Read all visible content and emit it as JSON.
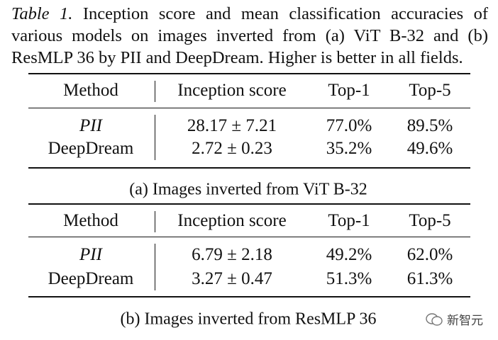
{
  "caption": {
    "label": "Table 1.",
    "text": "Inception score and mean classification accuracies of various models on images inverted from (a) ViT B-32 and (b) ResMLP 36 by PII and DeepDream. Higher is better in all fields."
  },
  "tables": [
    {
      "headers": [
        "Method",
        "Inception score",
        "Top-1",
        "Top-5"
      ],
      "rows": [
        [
          "PII",
          "28.17 ± 7.21",
          "77.0%",
          "89.5%"
        ],
        [
          "DeepDream",
          "2.72 ± 0.23",
          "35.2%",
          "49.6%"
        ]
      ],
      "caption": "(a) Images inverted from ViT B-32"
    },
    {
      "headers": [
        "Method",
        "Inception score",
        "Top-1",
        "Top-5"
      ],
      "rows": [
        [
          "PII",
          "6.79 ± 2.18",
          "49.2%",
          "62.0%"
        ],
        [
          "DeepDream",
          "3.27 ± 0.47",
          "51.3%",
          "61.3%"
        ]
      ],
      "caption": "(b) Images inverted from ResMLP 36"
    }
  ],
  "watermark": "新智元"
}
